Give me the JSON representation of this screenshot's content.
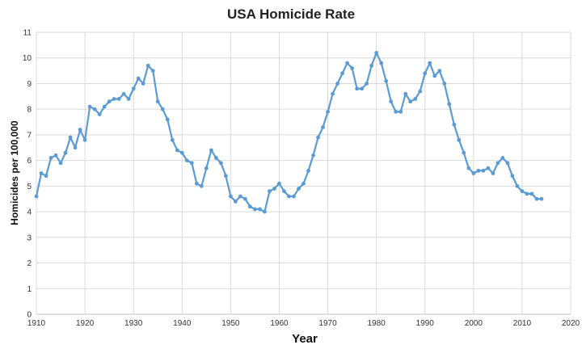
{
  "chart_data": {
    "type": "line",
    "title": "USA Homicide Rate",
    "xlabel": "Year",
    "ylabel": "Homicides per 100,000",
    "xlim": [
      1910,
      2020
    ],
    "ylim": [
      0,
      11
    ],
    "xticks": [
      1910,
      1920,
      1930,
      1940,
      1950,
      1960,
      1970,
      1980,
      1990,
      2000,
      2010,
      2020
    ],
    "yticks": [
      0,
      1,
      2,
      3,
      4,
      5,
      6,
      7,
      8,
      9,
      10,
      11
    ],
    "grid": true,
    "legend": "none",
    "color": "#5b9bd5",
    "series": [
      {
        "x": [
          1910,
          1911,
          1912,
          1913,
          1914,
          1915,
          1916,
          1917,
          1918,
          1919,
          1920,
          1921,
          1922,
          1923,
          1924,
          1925,
          1926,
          1927,
          1928,
          1929,
          1930,
          1931,
          1932,
          1933,
          1934,
          1935,
          1936,
          1937,
          1938,
          1939,
          1940,
          1941,
          1942,
          1943,
          1944,
          1945,
          1946,
          1947,
          1948,
          1949,
          1950,
          1951,
          1952,
          1953,
          1954,
          1955,
          1956,
          1957,
          1958,
          1959,
          1960,
          1961,
          1962,
          1963,
          1964,
          1965,
          1966,
          1967,
          1968,
          1969,
          1970,
          1971,
          1972,
          1973,
          1974,
          1975,
          1976,
          1977,
          1978,
          1979,
          1980,
          1981,
          1982,
          1983,
          1984,
          1985,
          1986,
          1987,
          1988,
          1989,
          1990,
          1991,
          1992,
          1993,
          1994,
          1995,
          1996,
          1997,
          1998,
          1999,
          2000,
          2001,
          2002,
          2003,
          2004,
          2005,
          2006,
          2007,
          2008,
          2009,
          2010,
          2011,
          2012,
          2013,
          2014
        ],
        "y": [
          4.6,
          5.5,
          5.4,
          6.1,
          6.2,
          5.9,
          6.3,
          6.9,
          6.5,
          7.2,
          6.8,
          8.1,
          8.0,
          7.8,
          8.1,
          8.3,
          8.4,
          8.4,
          8.6,
          8.4,
          8.8,
          9.2,
          9.0,
          9.7,
          9.5,
          8.3,
          8.0,
          7.6,
          6.8,
          6.4,
          6.3,
          6.0,
          5.9,
          5.1,
          5.0,
          5.7,
          6.4,
          6.1,
          5.9,
          5.4,
          4.6,
          4.4,
          4.6,
          4.5,
          4.2,
          4.1,
          4.1,
          4.0,
          4.8,
          4.9,
          5.1,
          4.8,
          4.6,
          4.6,
          4.9,
          5.1,
          5.6,
          6.2,
          6.9,
          7.3,
          7.9,
          8.6,
          9.0,
          9.4,
          9.8,
          9.6,
          8.8,
          8.8,
          9.0,
          9.7,
          10.2,
          9.8,
          9.1,
          8.3,
          7.9,
          7.9,
          8.6,
          8.3,
          8.4,
          8.7,
          9.4,
          9.8,
          9.3,
          9.5,
          9.0,
          8.2,
          7.4,
          6.8,
          6.3,
          5.7,
          5.5,
          5.6,
          5.6,
          5.7,
          5.5,
          5.9,
          6.1,
          5.9,
          5.4,
          5.0,
          4.8,
          4.7,
          4.7,
          4.5,
          4.5
        ]
      }
    ]
  }
}
